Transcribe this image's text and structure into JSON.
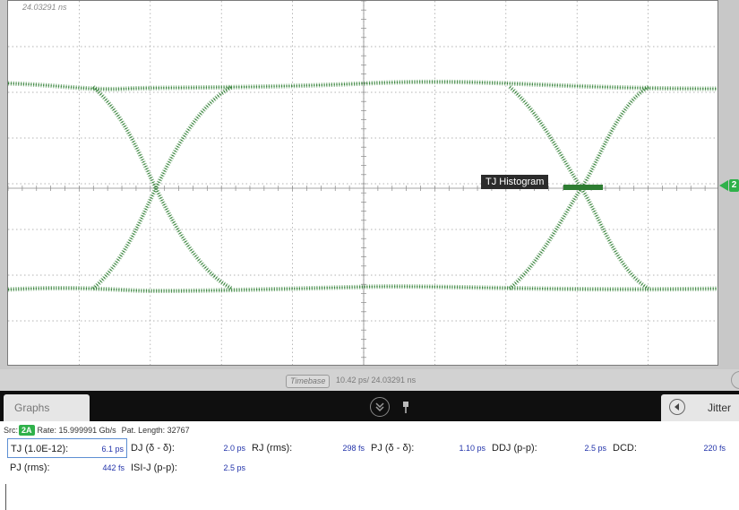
{
  "scope": {
    "trigger_time": "24.03291 ns",
    "tj_histogram_label": "TJ Histogram",
    "channel_marker": "2",
    "trace_color": "#2e7d32",
    "marker_color": "#2fb14a"
  },
  "timebase": {
    "button_label": "Timebase",
    "value": "10.42 ps/  24.03291 ns"
  },
  "tabs": {
    "graphs_label": "Graphs",
    "jitter_label": "Jitter"
  },
  "source": {
    "label": "Src:",
    "channel": "2A",
    "rate": "Rate: 15.999991 Gb/s",
    "pattern": "Pat. Length: 32767"
  },
  "measurements": [
    {
      "label": "TJ (1.0E-12):",
      "value": "6.1 ps"
    },
    {
      "label": "DJ (δ - δ):",
      "value": "2.0 ps"
    },
    {
      "label": "RJ (rms):",
      "value": "298 fs"
    },
    {
      "label": "PJ (δ - δ):",
      "value": "1.10 ps"
    },
    {
      "label": "DDJ (p-p):",
      "value": "2.5 ps"
    },
    {
      "label": "DCD:",
      "value": "220 fs"
    },
    {
      "label": "PJ (rms):",
      "value": "442 fs"
    },
    {
      "label": "ISI-J (p-p):",
      "value": "2.5 ps"
    }
  ]
}
